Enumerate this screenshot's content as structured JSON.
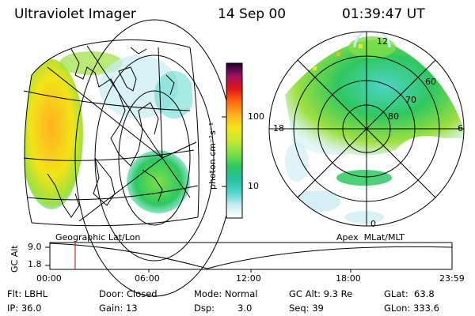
{
  "header": {
    "instrument": "Ultraviolet Imager",
    "date": "14 Sep 00",
    "time": "01:39:47 UT"
  },
  "colorbar": {
    "unit_label": "photon cm⁻²s⁻¹",
    "tick_100": "100",
    "tick_10": "10",
    "scale": "log",
    "colors_bottom_to_top": [
      "#ffffff",
      "#c9ecf2",
      "#4fd4c8",
      "#28c0a0",
      "#2ec860",
      "#7ee048",
      "#c8e830",
      "#f2e418",
      "#ffb020",
      "#ff6a10",
      "#e01818",
      "#a01060",
      "#200030"
    ]
  },
  "geo_map": {
    "projection_label": "Geographic Lat/Lon"
  },
  "polar_map": {
    "projection_label": "Apex  MLat/MLT",
    "mlt_labels": {
      "top": "12",
      "left": "18",
      "right": "6",
      "bottom": "0"
    },
    "lat_labels": [
      "60",
      "70",
      "80"
    ]
  },
  "altitude_plot": {
    "y_axis_label": "GC Alt",
    "y_ticks": [
      "9.0",
      "1.8"
    ],
    "x_ticks": [
      "00:00",
      "06:00",
      "12:00",
      "18:00",
      "23:59"
    ],
    "current_time_marker_color": "#cc0000"
  },
  "footer": {
    "filter": "Flt: LBHL",
    "ip": "IP: 36.0",
    "door": "Door: Closed",
    "gain": "Gain: 13",
    "mode": "Mode: Normal",
    "dsp": "Dsp:",
    "dsp_value": "3.0",
    "gc_alt": "GC Alt: 9.3 Re",
    "seq": "Seq: 39",
    "glat": "GLat:  63.8",
    "glon": "GLon: 333.6"
  }
}
